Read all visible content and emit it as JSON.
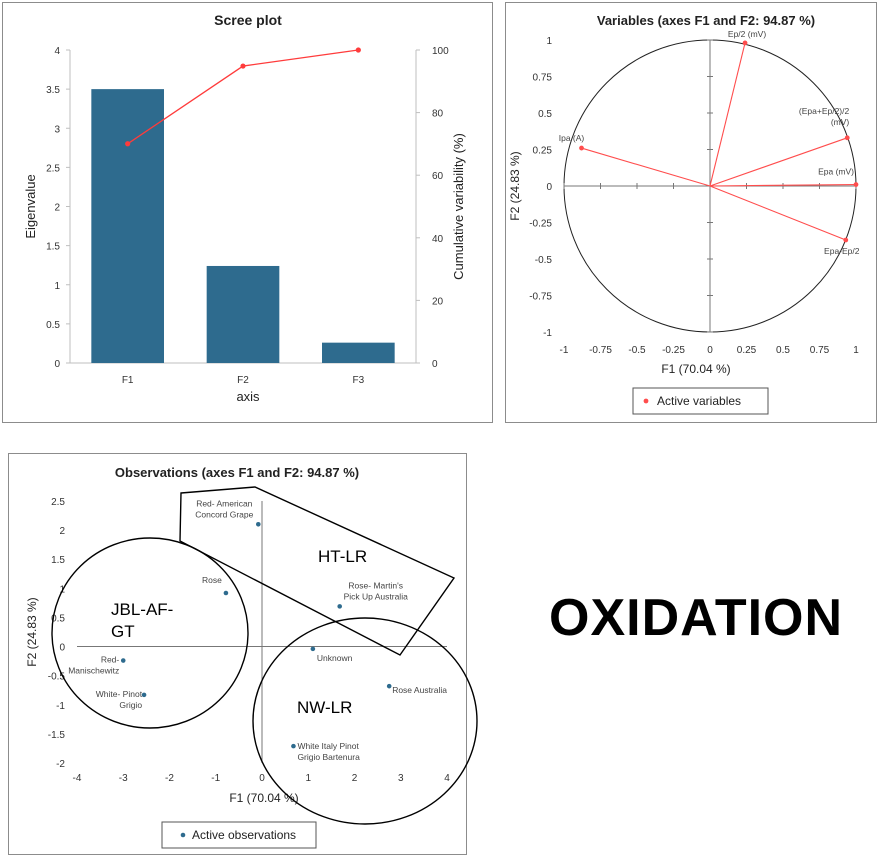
{
  "scree_plot": {
    "title": "Scree plot",
    "xlabel": "axis",
    "ylabel_left": "Eigenvalue",
    "ylabel_right": "Cumulative variability (%)",
    "bar_color": "#2e6b8e",
    "line_color": "#ff3b3b"
  },
  "correlation_circle": {
    "title": "Variables (axes F1 and F2: 94.87 %)",
    "xlabel": "F1 (70.04 %)",
    "ylabel": "F2 (24.83 %)",
    "legend_label": "Active variables",
    "vector_color": "#ff4d4d"
  },
  "observations": {
    "title": "Observations (axes F1 and F2: 94.87 %)",
    "xlabel": "F1 (70.04 %)",
    "ylabel": "F2 (24.83 %)",
    "legend_label": "Active observations",
    "point_color": "#2e6b8e",
    "groups": [
      {
        "label": "JBL-AF-\nGT"
      },
      {
        "label": "HT-LR"
      },
      {
        "label": "NW-LR"
      }
    ]
  },
  "annotation_word": "OXIDATION",
  "chart_data": [
    {
      "type": "bar",
      "title": "Scree plot",
      "categories": [
        "F1",
        "F2",
        "F3"
      ],
      "xlabel": "axis",
      "ylabel": "Eigenvalue",
      "ylim": [
        0,
        4
      ],
      "yticks": [
        "0",
        "0.5",
        "1",
        "1.5",
        "2",
        "2.5",
        "3",
        "3.5",
        "4"
      ],
      "series": [
        {
          "values": [
            3.5,
            1.24,
            0.26
          ]
        }
      ],
      "secondary_axis": {
        "type": "line",
        "ylabel": "Cumulative variability (%)",
        "ylim": [
          0,
          100
        ],
        "yticks": [
          "0",
          "20",
          "40",
          "60",
          "80",
          "100"
        ],
        "values": [
          70.04,
          94.87,
          100
        ]
      },
      "grid": false
    },
    {
      "type": "scatter",
      "title": "Variables (axes F1 and F2: 94.87 %)",
      "xlabel": "F1 (70.04 %)",
      "ylabel": "F2 (24.83 %)",
      "xlim": [
        -1,
        1
      ],
      "ylim": [
        -1,
        1
      ],
      "xticks": [
        "-1",
        "-0.75",
        "-0.5",
        "-0.25",
        "0",
        "0.25",
        "0.5",
        "0.75",
        "1"
      ],
      "yticks": [
        "1",
        "0.75",
        "0.5",
        "0.25",
        "0",
        "-0.25",
        "-0.5",
        "-0.75",
        "-1"
      ],
      "legend": "bottom",
      "points": [
        {
          "label": "Ep/2 (mV)",
          "x": 0.24,
          "y": 0.98
        },
        {
          "label": "(Epa+Ep/2)/2\n(mV)",
          "x": 0.94,
          "y": 0.33
        },
        {
          "label": "Epa (mV)",
          "x": 1.0,
          "y": 0.01
        },
        {
          "label": "Epa-Ep/2",
          "x": 0.93,
          "y": -0.37
        },
        {
          "label": "Ipa (A)",
          "x": -0.88,
          "y": 0.26
        }
      ]
    },
    {
      "type": "scatter",
      "title": "Observations (axes F1 and F2: 94.87 %)",
      "xlabel": "F1 (70.04 %)",
      "ylabel": "F2 (24.83 %)",
      "xlim": [
        -4,
        4
      ],
      "ylim": [
        -2,
        2.5
      ],
      "xticks": [
        "-4",
        "-3",
        "-2",
        "-1",
        "0",
        "1",
        "2",
        "3",
        "4"
      ],
      "yticks": [
        "2.5",
        "2",
        "1.5",
        "1",
        "0.5",
        "0",
        "-0.5",
        "-1",
        "-1.5",
        "-2"
      ],
      "legend": "bottom",
      "points": [
        {
          "label": "Red- American\nConcord Grape",
          "x": -0.08,
          "y": 2.1
        },
        {
          "label": "Rose",
          "x": -0.78,
          "y": 0.92
        },
        {
          "label": "Rose- Martin's\nPick Up Australia",
          "x": 1.68,
          "y": 0.69
        },
        {
          "label": "Unknown",
          "x": 1.1,
          "y": -0.04
        },
        {
          "label": "Red-\nManischewitz",
          "x": -3.0,
          "y": -0.24
        },
        {
          "label": "White- Pinot\nGrigio",
          "x": -2.55,
          "y": -0.83
        },
        {
          "label": "Rose Australia",
          "x": 2.75,
          "y": -0.68
        },
        {
          "label": "White Italy Pinot\nGrigio Bartenura",
          "x": 0.68,
          "y": -1.71
        }
      ]
    }
  ]
}
